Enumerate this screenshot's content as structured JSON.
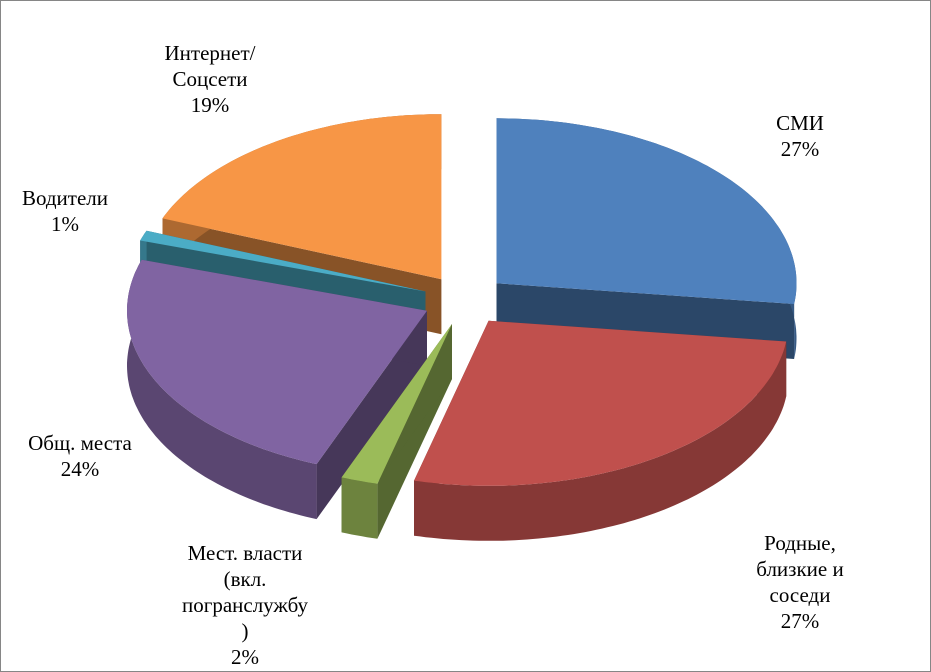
{
  "chart_data": {
    "type": "pie3d",
    "categories": [
      "СМИ",
      "Родные,\nблизкие и\nсоседи",
      "Мест. власти\n(вкл.\nпогранслужбу\n)",
      "Общ. места",
      "Водители",
      "Интернет/\nСоцсети"
    ],
    "values": [
      27,
      27,
      2,
      24,
      1,
      19
    ],
    "value_labels": [
      "27%",
      "27%",
      "2%",
      "24%",
      "1%",
      "19%"
    ],
    "colors": [
      "#4f81bd",
      "#c0504d",
      "#9bbb59",
      "#8064a2",
      "#4bacc6",
      "#f79646"
    ]
  }
}
